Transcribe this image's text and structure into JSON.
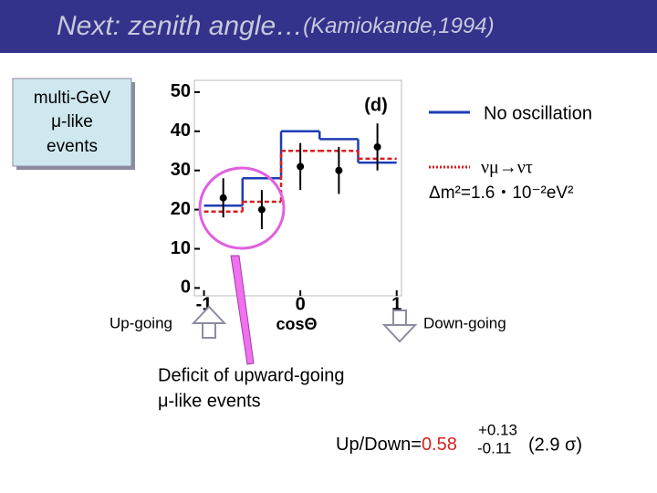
{
  "title": {
    "main": "Next: zenith angle…",
    "sub": "(Kamiokande,1994)"
  },
  "textbox": {
    "lines": [
      "multi-GeV",
      "μ-like",
      "events"
    ]
  },
  "legend_note": "Δm²=1.6・10⁻²eV²",
  "arrows": {
    "up": "Up-going",
    "down": "Down-going"
  },
  "deficit": {
    "lines": [
      "Deficit of upward-going",
      "μ-like events"
    ]
  },
  "ratio": {
    "label": "Up/Down=",
    "value": "0.58",
    "plus": "+0.13",
    "minus": "-0.11",
    "sigma": "(2.9 σ)"
  },
  "chart_data": {
    "type": "histogram",
    "panel_label": "(d)",
    "xlabel": "cosΘ",
    "bins": [
      -1,
      -0.6,
      -0.2,
      0.2,
      0.6,
      1
    ],
    "series": [
      {
        "name": "No oscillation",
        "color": "#1f3cb4",
        "dashed": false,
        "values": [
          21,
          28,
          40,
          38,
          32
        ]
      },
      {
        "name": "νμ→ντ",
        "color": "#d82020",
        "dashed": true,
        "values": [
          19.5,
          22,
          35,
          35,
          33
        ]
      }
    ],
    "points": {
      "x": [
        -0.8,
        -0.4,
        0,
        0.4,
        0.8
      ],
      "values": [
        23,
        20,
        31,
        30,
        36
      ],
      "errors": [
        5,
        5,
        6,
        6,
        6
      ],
      "color": "#000000"
    },
    "xlim": [
      -1.1,
      1.05
    ],
    "ylim": [
      -2,
      53
    ],
    "xticks": [
      -1,
      0,
      1
    ],
    "yticks": [
      0,
      10,
      20,
      30,
      40,
      50
    ]
  }
}
